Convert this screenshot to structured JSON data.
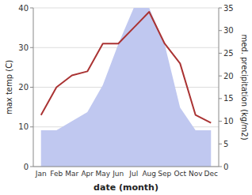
{
  "chart_data": {
    "type": "line",
    "categories": [
      "Jan",
      "Feb",
      "Mar",
      "Apr",
      "May",
      "Jun",
      "Jul",
      "Aug",
      "Sep",
      "Oct",
      "Nov",
      "Dec"
    ],
    "xlabel": "date (month)",
    "ylabel": "max temp (C)",
    "y2label": "med. precipitation (kg/m2)",
    "series": [
      {
        "type": "area",
        "axis": "y2",
        "color": "#c0c8f0",
        "values": [
          8,
          8,
          10,
          12,
          18,
          27,
          35,
          35,
          27,
          13,
          8,
          8
        ]
      },
      {
        "type": "line",
        "color": "#aa3333",
        "values": [
          13,
          20,
          23,
          24,
          31,
          31,
          35,
          39,
          31,
          26,
          13,
          11
        ]
      }
    ],
    "ylim": [
      0,
      40
    ],
    "yticks": [
      0,
      10,
      20,
      30,
      40
    ],
    "y2lim": [
      0,
      35
    ],
    "y2ticks": [
      0,
      5,
      10,
      15,
      20,
      25,
      30,
      35
    ],
    "grid": true
  }
}
